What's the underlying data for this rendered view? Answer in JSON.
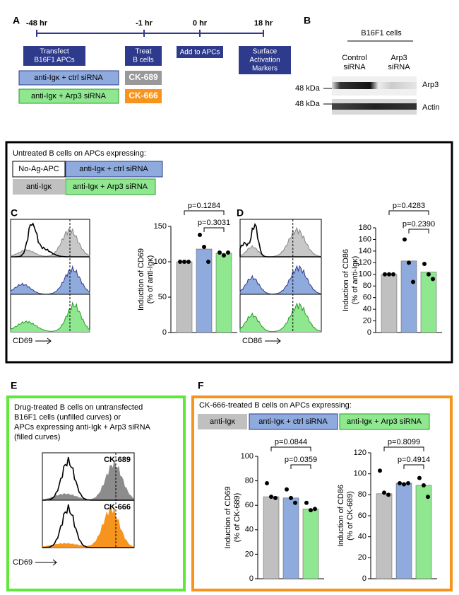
{
  "labels": {
    "A": "A",
    "B": "B",
    "C": "C",
    "D": "D",
    "E": "E",
    "F": "F"
  },
  "timeline": {
    "ticks": [
      "-48 hr",
      "-1 hr",
      "0 hr",
      "18 hr"
    ],
    "steps": [
      [
        "Transfect",
        "B16F1 APCs"
      ],
      [
        "Treat",
        "B cells"
      ],
      [
        "Add to APCs"
      ],
      [
        "Surface",
        "Activation",
        "Markers"
      ]
    ],
    "groups": [
      "anti-Igκ + ctrl siRNA",
      "anti-Igκ + Arp3 siRNA"
    ],
    "drugs": [
      "CK-689",
      "CK-666"
    ]
  },
  "blot": {
    "title": "B16F1 cells",
    "lanes": [
      [
        "Control",
        "siRNA"
      ],
      [
        "Arp3",
        "siRNA"
      ]
    ],
    "markers": [
      "48 kDa",
      "48 kDa"
    ],
    "proteins": [
      "Arp3",
      "Actin"
    ]
  },
  "untreated": {
    "title": "Untreated B cells on APCs expressing:",
    "legend": [
      "No-Ag-APC",
      "anti-Igκ + ctrl siRNA",
      "anti-Igκ",
      "anti-Igκ + Arp3 siRNA"
    ],
    "hist_axes": [
      "CD69",
      "CD86"
    ]
  },
  "drug": {
    "title": [
      "Drug-treated B cells on untransfected",
      "B16F1 cells (unfilled curves) or",
      "APCs expressing anti-Igk + Arp3 siRNA",
      "(filled curves)"
    ],
    "curves": [
      "CK-689",
      "CK-666"
    ],
    "axis": "CD69"
  },
  "ck666": {
    "title": "CK-666-treated B cells on APCs expressing:",
    "legend": [
      "anti-Igκ",
      "anti-Igκ + ctrl siRNA",
      "anti-Igκ + Arp3 siRNA"
    ]
  },
  "chart_data": [
    {
      "type": "bar",
      "ylabel": [
        "Induction of CD69",
        "(% of anti-Igκ)"
      ],
      "values": [
        100,
        118,
        112
      ],
      "points": [
        [
          100,
          100,
          100
        ],
        [
          138,
          121,
          100
        ],
        [
          113,
          109,
          113
        ]
      ],
      "colors": [
        "#c0c0c0",
        "#8faadc",
        "#8fe88f"
      ],
      "ylim": [
        0,
        150
      ],
      "yticks": [
        0,
        50,
        100,
        150
      ],
      "annotations": [
        "p=0.1284",
        "p=0.3031"
      ]
    },
    {
      "type": "bar",
      "ylabel": [
        "Induction of CD86",
        "(% of anti-Igκ)"
      ],
      "values": [
        100,
        123,
        104
      ],
      "points": [
        [
          100,
          100,
          100
        ],
        [
          160,
          120,
          87
        ],
        [
          118,
          100,
          92
        ]
      ],
      "colors": [
        "#c0c0c0",
        "#8faadc",
        "#8fe88f"
      ],
      "ylim": [
        0,
        180
      ],
      "yticks": [
        0,
        20,
        40,
        60,
        80,
        100,
        120,
        140,
        160,
        180
      ],
      "annotations": [
        "p=0.4283",
        "p=0.2390"
      ]
    },
    {
      "type": "bar",
      "ylabel": [
        "Induction of CD69",
        "(% of CK-689)"
      ],
      "values": [
        67,
        66,
        57
      ],
      "points": [
        [
          78,
          67,
          66
        ],
        [
          73,
          66,
          62
        ],
        [
          62,
          56,
          57
        ]
      ],
      "colors": [
        "#c0c0c0",
        "#8faadc",
        "#8fe88f"
      ],
      "ylim": [
        0,
        100
      ],
      "yticks": [
        0,
        20,
        40,
        60,
        80,
        100
      ],
      "annotations": [
        "p=0.0844",
        "p=0.0359"
      ]
    },
    {
      "type": "bar",
      "ylabel": [
        "Induction of CD86",
        "(% of CK-689)"
      ],
      "values": [
        81,
        91,
        89
      ],
      "points": [
        [
          103,
          82,
          80
        ],
        [
          91,
          90,
          91
        ],
        [
          96,
          89,
          78
        ]
      ],
      "colors": [
        "#c0c0c0",
        "#8faadc",
        "#8fe88f"
      ],
      "ylim": [
        0,
        120
      ],
      "yticks": [
        0,
        20,
        40,
        60,
        80,
        100,
        120
      ],
      "annotations": [
        "p=0.8099",
        "p=0.4914"
      ]
    }
  ]
}
